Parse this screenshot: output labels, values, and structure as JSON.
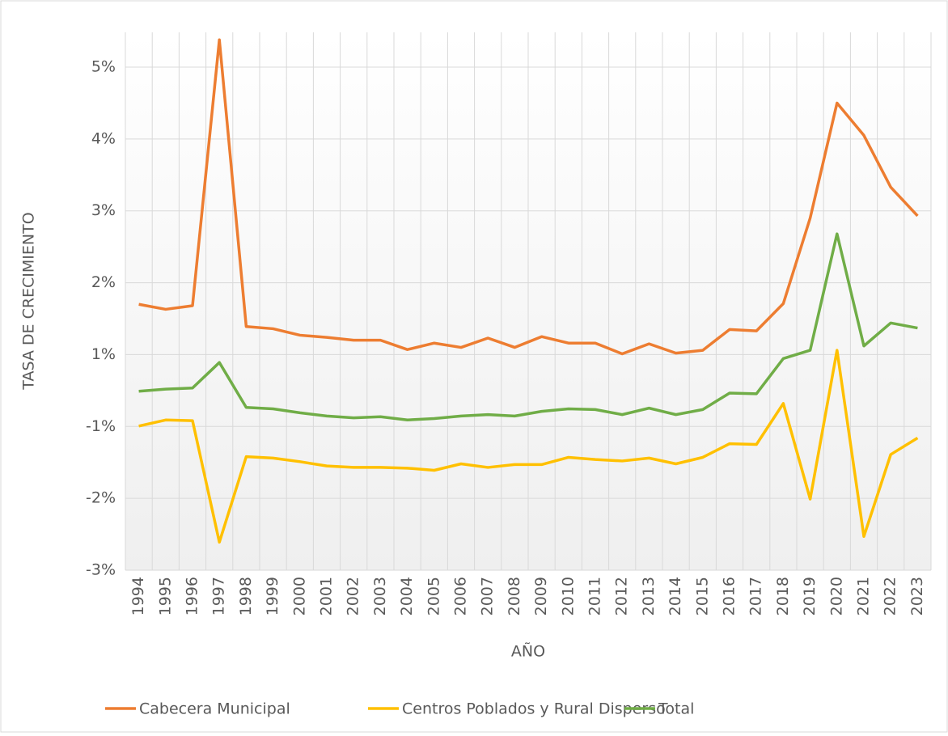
{
  "chart_data": {
    "type": "line",
    "x_label": "AÑO",
    "y_label": "TASA DE CRECIMIENTO",
    "categories": [
      "1994",
      "1995",
      "1996",
      "1997",
      "1998",
      "1999",
      "2000",
      "2001",
      "2002",
      "2003",
      "2004",
      "2005",
      "2006",
      "2007",
      "2008",
      "2009",
      "2010",
      "2011",
      "2012",
      "2013",
      "2014",
      "2015",
      "2016",
      "2017",
      "2018",
      "2019",
      "2020",
      "2021",
      "2022",
      "2023"
    ],
    "series": [
      {
        "name": "Cabecera Municipal",
        "color": "#ed7d31",
        "values": [
          1.7,
          1.63,
          1.68,
          5.38,
          1.39,
          1.36,
          1.27,
          1.24,
          1.2,
          1.2,
          1.07,
          1.16,
          1.1,
          1.23,
          1.1,
          1.25,
          1.16,
          1.16,
          1.01,
          1.15,
          1.02,
          1.06,
          1.35,
          1.33,
          1.71,
          2.9,
          4.5,
          4.05,
          3.33,
          2.93
        ]
      },
      {
        "name": "Centros Poblados y Rural Disperso",
        "color": "#ffc000",
        "values": [
          -0.99,
          -0.82,
          -0.84,
          -2.61,
          -1.42,
          -1.44,
          -1.49,
          -1.55,
          -1.57,
          -1.57,
          -1.58,
          -1.61,
          -1.52,
          -1.57,
          -1.53,
          -1.53,
          -1.43,
          -1.46,
          -1.48,
          -1.44,
          -1.52,
          -1.43,
          -1.24,
          -1.25,
          -0.36,
          -2.01,
          1.06,
          -2.53,
          -1.39,
          -1.16
        ]
      },
      {
        "name": "Total",
        "color": "#70ad47",
        "values": [
          -0.02,
          0.04,
          0.07,
          0.78,
          -0.47,
          -0.51,
          -0.62,
          -0.71,
          -0.76,
          -0.73,
          -0.82,
          -0.78,
          -0.71,
          -0.67,
          -0.71,
          -0.58,
          -0.51,
          -0.53,
          -0.67,
          -0.49,
          -0.67,
          -0.53,
          -0.07,
          -0.09,
          0.89,
          1.06,
          2.68,
          1.12,
          1.44,
          1.37
        ]
      }
    ],
    "ylim": [
      -3,
      5
    ],
    "yticks": [
      {
        "value": -3,
        "label": "-3%"
      },
      {
        "value": -2,
        "label": "-2%"
      },
      {
        "value": -1,
        "label": "-1%"
      },
      {
        "value": 1,
        "label": "1%"
      },
      {
        "value": 2,
        "label": "2%"
      },
      {
        "value": 3,
        "label": "3%"
      },
      {
        "value": 4,
        "label": "4%"
      },
      {
        "value": 5,
        "label": "5%"
      }
    ],
    "grid": true,
    "legend": "bottom"
  }
}
